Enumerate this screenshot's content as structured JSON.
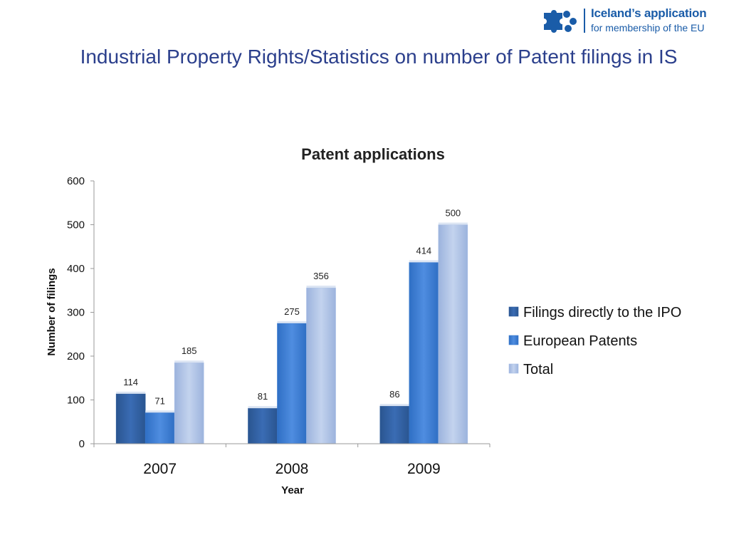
{
  "logo": {
    "line1": "Iceland’s application",
    "line2": "for membership of the EU",
    "color": "#1a5ca8"
  },
  "slide": {
    "title": "Industrial Property Rights/Statistics on number of Patent filings in IS"
  },
  "chart_data": {
    "type": "bar",
    "title": "Patent applications",
    "xlabel": "Year",
    "ylabel": "Number of filings",
    "ylim": [
      0,
      600
    ],
    "yticks": [
      0,
      100,
      200,
      300,
      400,
      500,
      600
    ],
    "categories": [
      "2007",
      "2008",
      "2009"
    ],
    "series": [
      {
        "name": "Filings directly to the IPO",
        "values": [
          114,
          81,
          86
        ],
        "color": "#2f5d9e"
      },
      {
        "name": "European Patents",
        "values": [
          71,
          275,
          414
        ],
        "color": "#3a7bd0"
      },
      {
        "name": "Total",
        "values": [
          185,
          356,
          500
        ],
        "color": "#a9bfe6"
      }
    ],
    "legend": "right",
    "grid": false,
    "data_labels": true
  }
}
